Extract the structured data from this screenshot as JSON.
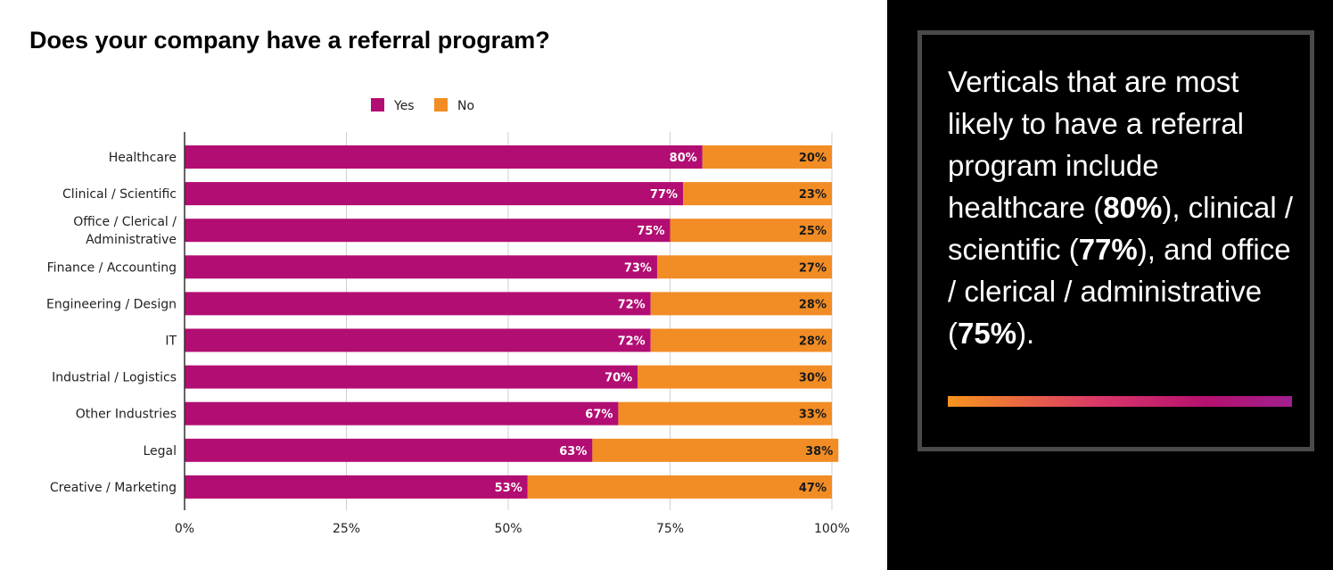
{
  "chart_title": "Does your company have a referral program?",
  "callout": {
    "parts": [
      {
        "text": "Verticals that are most likely to have a referral program include healthcare (",
        "bold": false
      },
      {
        "text": "80%",
        "bold": true
      },
      {
        "text": "), clinical / scientific (",
        "bold": false
      },
      {
        "text": "77%",
        "bold": true
      },
      {
        "text": "), and office / clerical / administrative (",
        "bold": false
      },
      {
        "text": "75%",
        "bold": true
      },
      {
        "text": ").",
        "bold": false
      }
    ]
  },
  "colors": {
    "yes": "#b20d72",
    "no": "#f28c25",
    "grid": "#d0d0d0",
    "axis": "#333333"
  },
  "chart_data": {
    "type": "bar",
    "orientation": "horizontal",
    "stacked": true,
    "categories": [
      "Healthcare",
      "Clinical / Scientific",
      "Office / Clerical / Administrative",
      "Finance / Accounting",
      "Engineering / Design",
      "IT",
      "Industrial / Logistics",
      "Other Industries",
      "Legal",
      "Creative / Marketing"
    ],
    "category_lines": [
      [
        "Healthcare"
      ],
      [
        "Clinical / Scientific"
      ],
      [
        "Office / Clerical /",
        "Administrative"
      ],
      [
        "Finance / Accounting"
      ],
      [
        "Engineering / Design"
      ],
      [
        "IT"
      ],
      [
        "Industrial / Logistics"
      ],
      [
        "Other Industries"
      ],
      [
        "Legal"
      ],
      [
        "Creative / Marketing"
      ]
    ],
    "series": [
      {
        "name": "Yes",
        "values": [
          80,
          77,
          75,
          73,
          72,
          72,
          70,
          67,
          63,
          53
        ]
      },
      {
        "name": "No",
        "values": [
          20,
          23,
          25,
          27,
          28,
          28,
          30,
          33,
          38,
          47
        ]
      }
    ],
    "xlim": [
      0,
      100
    ],
    "x_ticks": [
      0,
      25,
      50,
      75,
      100
    ],
    "x_tick_labels": [
      "0%",
      "25%",
      "50%",
      "75%",
      "100%"
    ],
    "value_suffix": "%",
    "legend_position": "top-center",
    "grid": true
  }
}
